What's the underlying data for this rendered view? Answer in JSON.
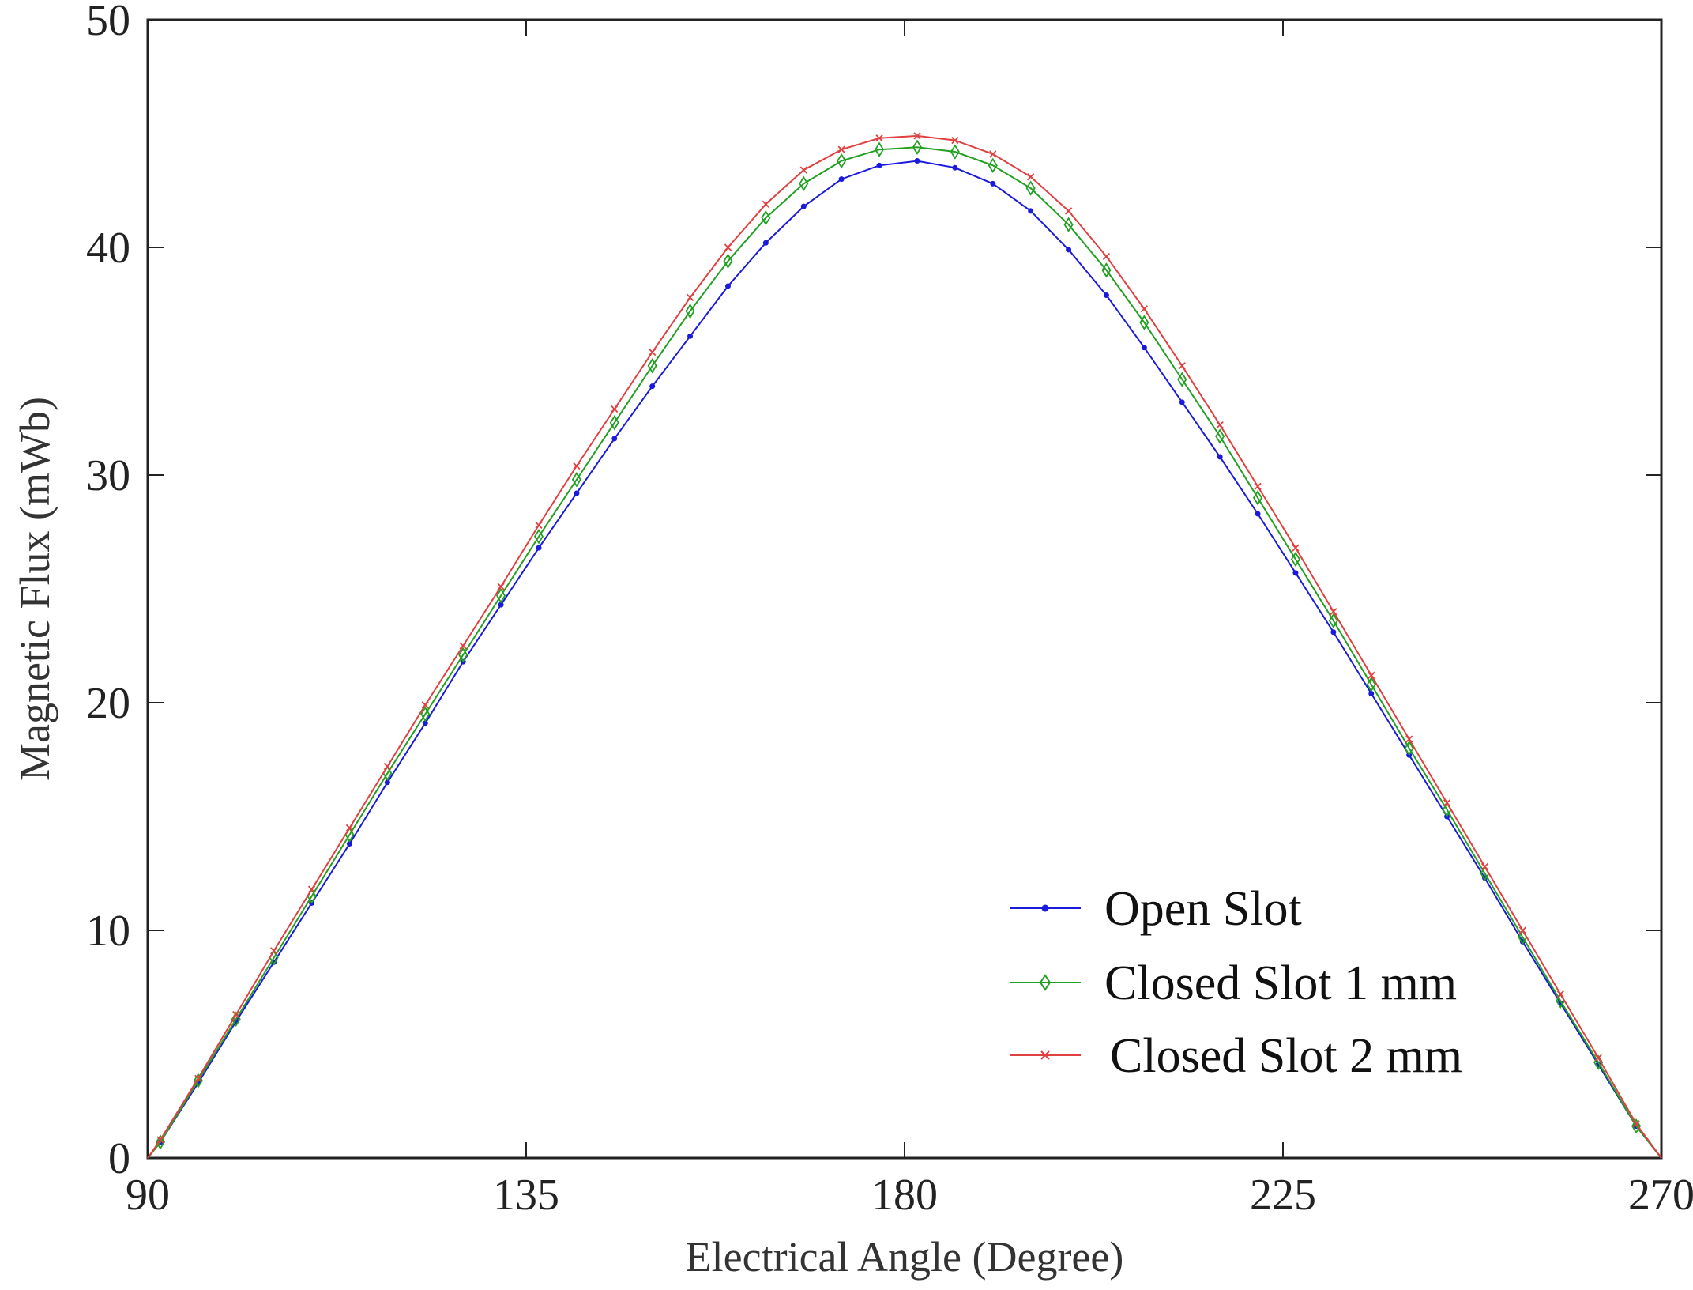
{
  "chart_data": {
    "type": "line",
    "title": "",
    "xlabel": "Electrical Angle (Degree)",
    "ylabel": "Magnetic Flux (mWb)",
    "xlim": [
      90,
      270
    ],
    "ylim": [
      0,
      50
    ],
    "xticks": [
      "90",
      "135",
      "180",
      "225",
      "270"
    ],
    "yticks": [
      "0",
      "10",
      "20",
      "30",
      "40",
      "50"
    ],
    "grid": false,
    "legend_position": "bottom-right",
    "x": [
      91.5,
      96,
      100.5,
      105,
      109.5,
      114,
      118.5,
      123,
      127.5,
      132,
      136.5,
      141,
      145.5,
      150,
      154.5,
      159,
      163.5,
      168,
      172.5,
      177,
      181.5,
      186,
      190.5,
      195,
      199.5,
      204,
      208.5,
      213,
      217.5,
      222,
      226.5,
      231,
      235.5,
      240,
      244.5,
      249,
      253.5,
      258,
      262.5,
      267
    ],
    "series": [
      {
        "name": "Open Slot",
        "color": "#1a1adc",
        "marker": "dot",
        "values": [
          0.7,
          3.3,
          6.0,
          8.6,
          11.2,
          13.8,
          16.5,
          19.1,
          21.8,
          24.3,
          26.8,
          29.2,
          31.6,
          33.9,
          36.1,
          38.3,
          40.2,
          41.8,
          43.0,
          43.6,
          43.8,
          43.5,
          42.8,
          41.6,
          39.9,
          37.9,
          35.6,
          33.2,
          30.8,
          28.3,
          25.7,
          23.1,
          20.4,
          17.7,
          15.0,
          12.3,
          9.5,
          6.8,
          4.1,
          1.4
        ]
      },
      {
        "name": "Closed Slot 1 mm",
        "color": "#22a022",
        "marker": "diamond",
        "values": [
          0.7,
          3.4,
          6.1,
          8.8,
          11.5,
          14.2,
          16.9,
          19.5,
          22.1,
          24.7,
          27.3,
          29.8,
          32.3,
          34.8,
          37.2,
          39.4,
          41.3,
          42.8,
          43.8,
          44.3,
          44.4,
          44.2,
          43.6,
          42.6,
          41.0,
          39.0,
          36.7,
          34.2,
          31.7,
          29.0,
          26.3,
          23.6,
          20.8,
          18.0,
          15.3,
          12.5,
          9.7,
          6.9,
          4.2,
          1.4
        ]
      },
      {
        "name": "Closed Slot 2 mm",
        "color": "#e04040",
        "marker": "x",
        "values": [
          0.8,
          3.5,
          6.3,
          9.1,
          11.8,
          14.5,
          17.2,
          19.9,
          22.5,
          25.1,
          27.8,
          30.4,
          32.9,
          35.4,
          37.8,
          40.0,
          41.9,
          43.4,
          44.3,
          44.8,
          44.9,
          44.7,
          44.1,
          43.1,
          41.6,
          39.6,
          37.3,
          34.8,
          32.2,
          29.5,
          26.8,
          24.0,
          21.2,
          18.4,
          15.6,
          12.8,
          10.0,
          7.2,
          4.4,
          1.5
        ]
      }
    ]
  }
}
